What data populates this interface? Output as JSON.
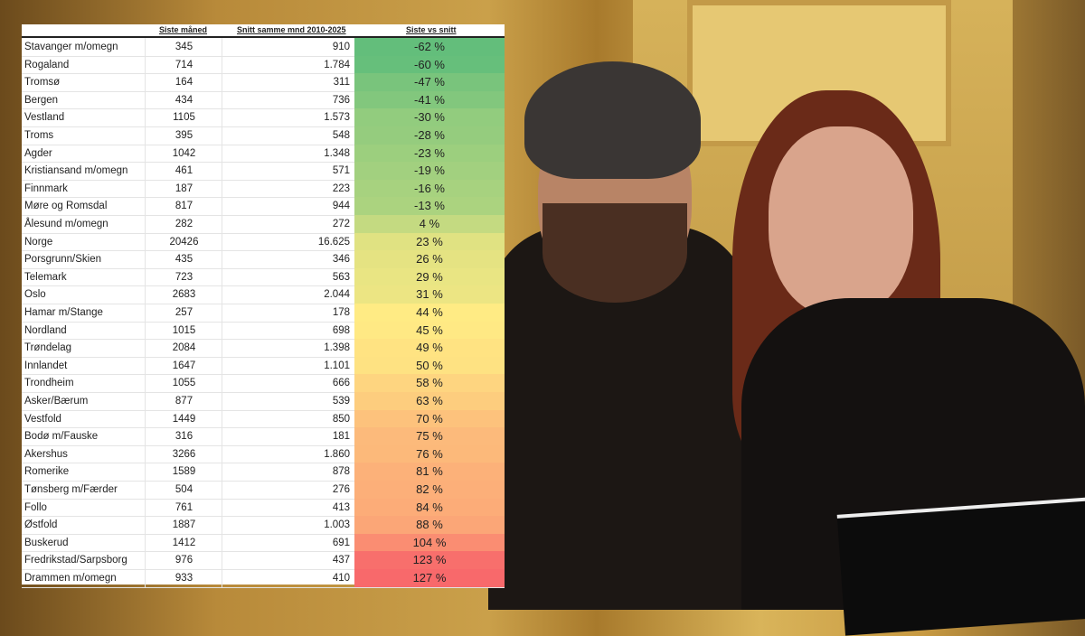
{
  "chart_data": {
    "type": "table",
    "columns": [
      "",
      "Siste måned",
      "Snitt samme mnd 2010-2025",
      "Siste vs snitt"
    ],
    "rows": [
      [
        "Stavanger m/omegn",
        "345",
        "910",
        "-62 %",
        -62
      ],
      [
        "Rogaland",
        "714",
        "1.784",
        "-60 %",
        -60
      ],
      [
        "Tromsø",
        "164",
        "311",
        "-47 %",
        -47
      ],
      [
        "Bergen",
        "434",
        "736",
        "-41 %",
        -41
      ],
      [
        "Vestland",
        "1105",
        "1.573",
        "-30 %",
        -30
      ],
      [
        "Troms",
        "395",
        "548",
        "-28 %",
        -28
      ],
      [
        "Agder",
        "1042",
        "1.348",
        "-23 %",
        -23
      ],
      [
        "Kristiansand m/omegn",
        "461",
        "571",
        "-19 %",
        -19
      ],
      [
        "Finnmark",
        "187",
        "223",
        "-16 %",
        -16
      ],
      [
        "Møre og Romsdal",
        "817",
        "944",
        "-13 %",
        -13
      ],
      [
        "Ålesund m/omegn",
        "282",
        "272",
        "4 %",
        4
      ],
      [
        "Norge",
        "20426",
        "16.625",
        "23 %",
        23
      ],
      [
        "Porsgrunn/Skien",
        "435",
        "346",
        "26 %",
        26
      ],
      [
        "Telemark",
        "723",
        "563",
        "29 %",
        29
      ],
      [
        "Oslo",
        "2683",
        "2.044",
        "31 %",
        31
      ],
      [
        "Hamar m/Stange",
        "257",
        "178",
        "44 %",
        44
      ],
      [
        "Nordland",
        "1015",
        "698",
        "45 %",
        45
      ],
      [
        "Trøndelag",
        "2084",
        "1.398",
        "49 %",
        49
      ],
      [
        "Innlandet",
        "1647",
        "1.101",
        "50 %",
        50
      ],
      [
        "Trondheim",
        "1055",
        "666",
        "58 %",
        58
      ],
      [
        "Asker/Bærum",
        "877",
        "539",
        "63 %",
        63
      ],
      [
        "Vestfold",
        "1449",
        "850",
        "70 %",
        70
      ],
      [
        "Bodø m/Fauske",
        "316",
        "181",
        "75 %",
        75
      ],
      [
        "Akershus",
        "3266",
        "1.860",
        "76 %",
        76
      ],
      [
        "Romerike",
        "1589",
        "878",
        "81 %",
        81
      ],
      [
        "Tønsberg m/Færder",
        "504",
        "276",
        "82 %",
        82
      ],
      [
        "Follo",
        "761",
        "413",
        "84 %",
        84
      ],
      [
        "Østfold",
        "1887",
        "1.003",
        "88 %",
        88
      ],
      [
        "Buskerud",
        "1412",
        "691",
        "104 %",
        104
      ],
      [
        "Fredrikstad/Sarpsborg",
        "976",
        "437",
        "123 %",
        123
      ],
      [
        "Drammen m/omegn",
        "933",
        "410",
        "127 %",
        127
      ]
    ],
    "color_scale": {
      "low": "#63be7b",
      "mid": "#ffeb84",
      "high": "#f8696b"
    }
  }
}
